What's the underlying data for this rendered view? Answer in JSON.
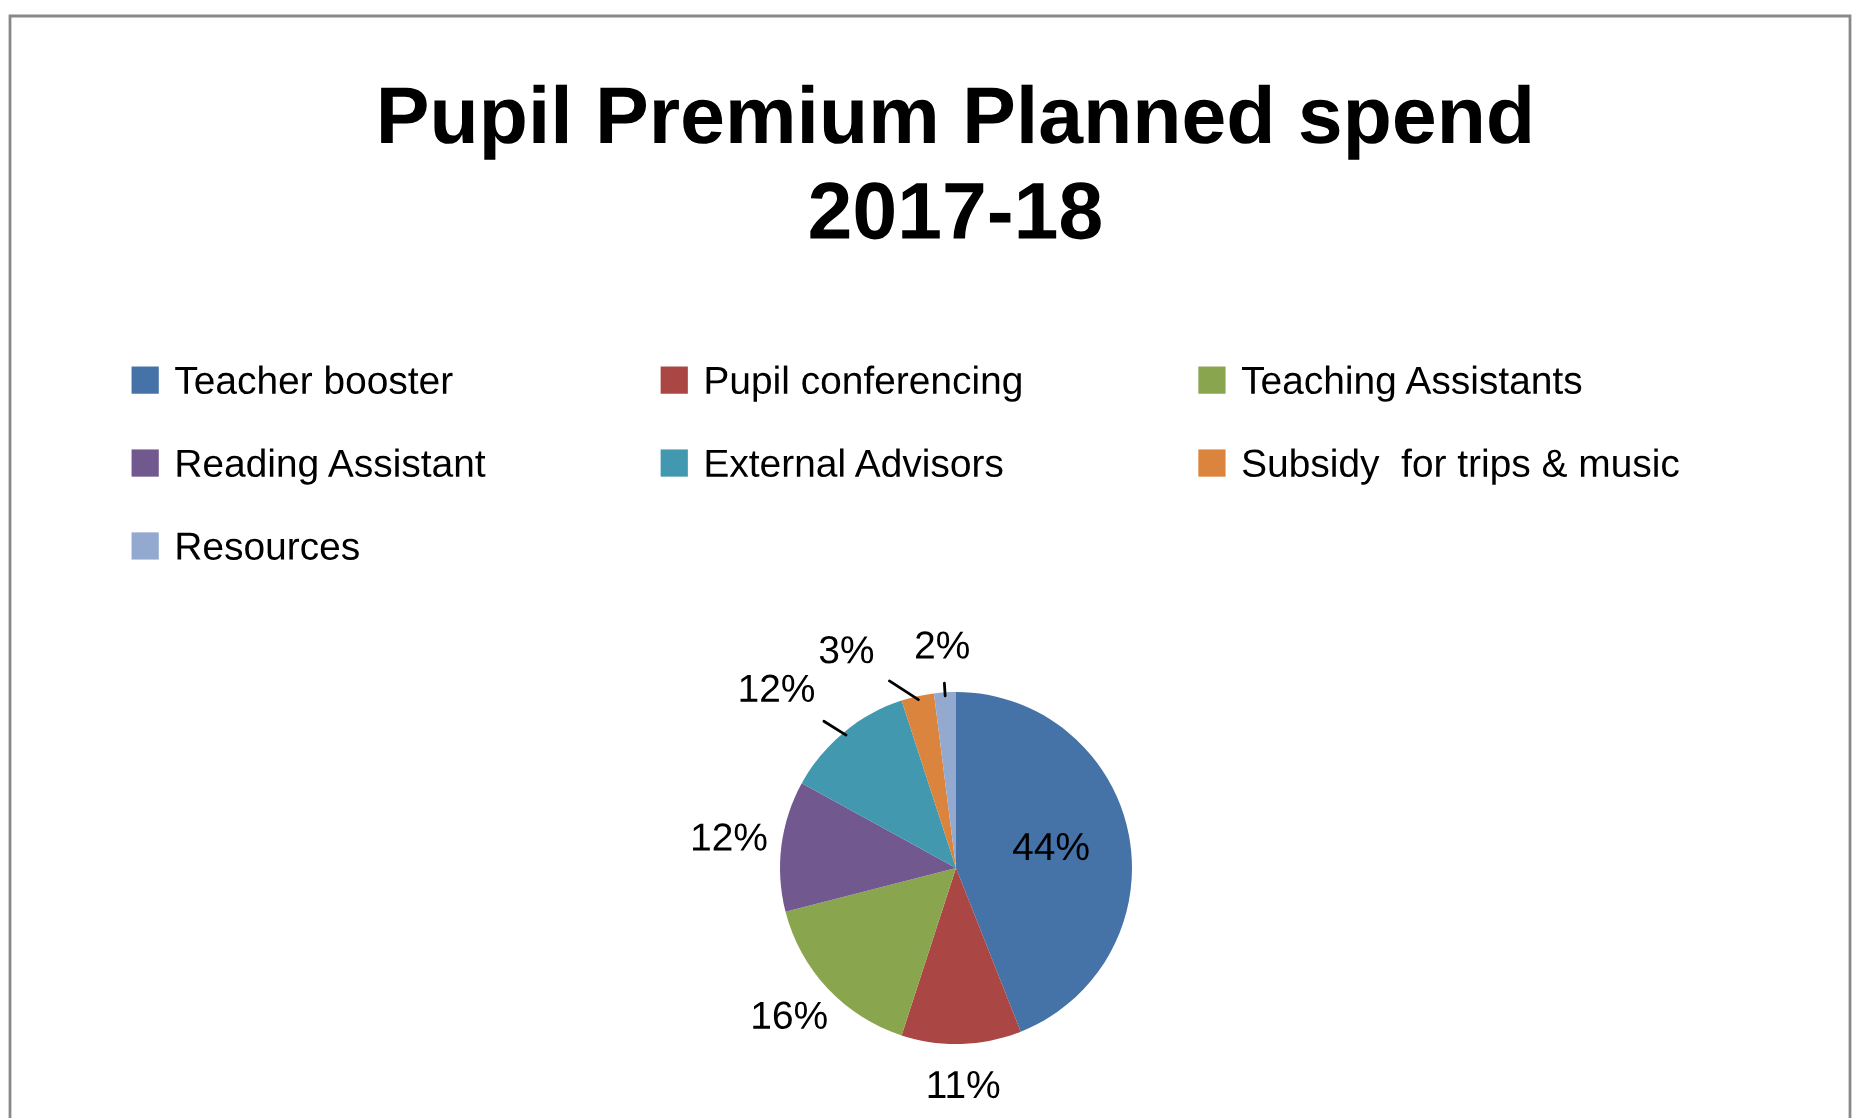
{
  "chart_data": {
    "type": "pie",
    "title": "Pupil Premium Planned spend\n2017-18",
    "categories": [
      "Teacher booster",
      "Pupil conferencing",
      "Teaching Assistants",
      "Reading Assistant",
      "External Advisors",
      "Subsidy  for trips & music",
      "Resources"
    ],
    "values": [
      44,
      11,
      16,
      12,
      12,
      3,
      2
    ],
    "colors": [
      "#4572a7",
      "#aa4643",
      "#89a54e",
      "#71588f",
      "#4198af",
      "#db843d",
      "#93a9cf"
    ],
    "value_labels": [
      "44%",
      "11%",
      "16%",
      "12%",
      "12%",
      "3%",
      "2%"
    ],
    "legend": "top"
  }
}
